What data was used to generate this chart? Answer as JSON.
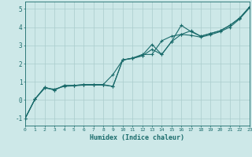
{
  "xlabel": "Humidex (Indice chaleur)",
  "xlim": [
    0,
    23
  ],
  "ylim": [
    -1.4,
    5.4
  ],
  "xticks": [
    0,
    1,
    2,
    3,
    4,
    5,
    6,
    7,
    8,
    9,
    10,
    11,
    12,
    13,
    14,
    15,
    16,
    17,
    18,
    19,
    20,
    21,
    22,
    23
  ],
  "yticks": [
    -1,
    0,
    1,
    2,
    3,
    4,
    5
  ],
  "bg_color": "#cde8e8",
  "grid_color": "#aacccc",
  "line_color": "#1a6b6b",
  "line1_x": [
    0,
    1,
    2,
    3,
    4,
    5,
    6,
    7,
    8,
    9,
    10,
    11,
    12,
    13,
    14,
    15,
    16,
    17,
    18,
    19,
    20,
    21,
    22,
    23
  ],
  "line1_y": [
    -1.0,
    0.05,
    0.7,
    0.55,
    0.8,
    0.8,
    0.85,
    0.85,
    0.85,
    0.75,
    2.2,
    2.3,
    2.45,
    3.05,
    2.5,
    3.2,
    4.1,
    3.75,
    3.5,
    3.65,
    3.8,
    4.1,
    4.5,
    5.1
  ],
  "line2_x": [
    0,
    1,
    2,
    3,
    4,
    5,
    6,
    7,
    8,
    9,
    10,
    11,
    12,
    13,
    14,
    15,
    16,
    17,
    18,
    19,
    20,
    21,
    22,
    23
  ],
  "line2_y": [
    -1.0,
    0.05,
    0.7,
    0.55,
    0.8,
    0.8,
    0.85,
    0.85,
    0.85,
    1.4,
    2.2,
    2.3,
    2.5,
    2.5,
    3.25,
    3.5,
    3.6,
    3.8,
    3.5,
    3.65,
    3.8,
    4.1,
    4.5,
    5.1
  ],
  "line3_x": [
    0,
    1,
    2,
    3,
    4,
    5,
    6,
    7,
    8,
    9,
    10,
    11,
    12,
    13,
    14,
    15,
    16,
    17,
    18,
    19,
    20,
    21,
    22,
    23
  ],
  "line3_y": [
    -1.0,
    0.05,
    0.65,
    0.6,
    0.75,
    0.78,
    0.82,
    0.82,
    0.82,
    0.75,
    2.2,
    2.28,
    2.42,
    2.78,
    2.5,
    3.2,
    3.6,
    3.55,
    3.45,
    3.58,
    3.75,
    4.0,
    4.45,
    5.05
  ]
}
